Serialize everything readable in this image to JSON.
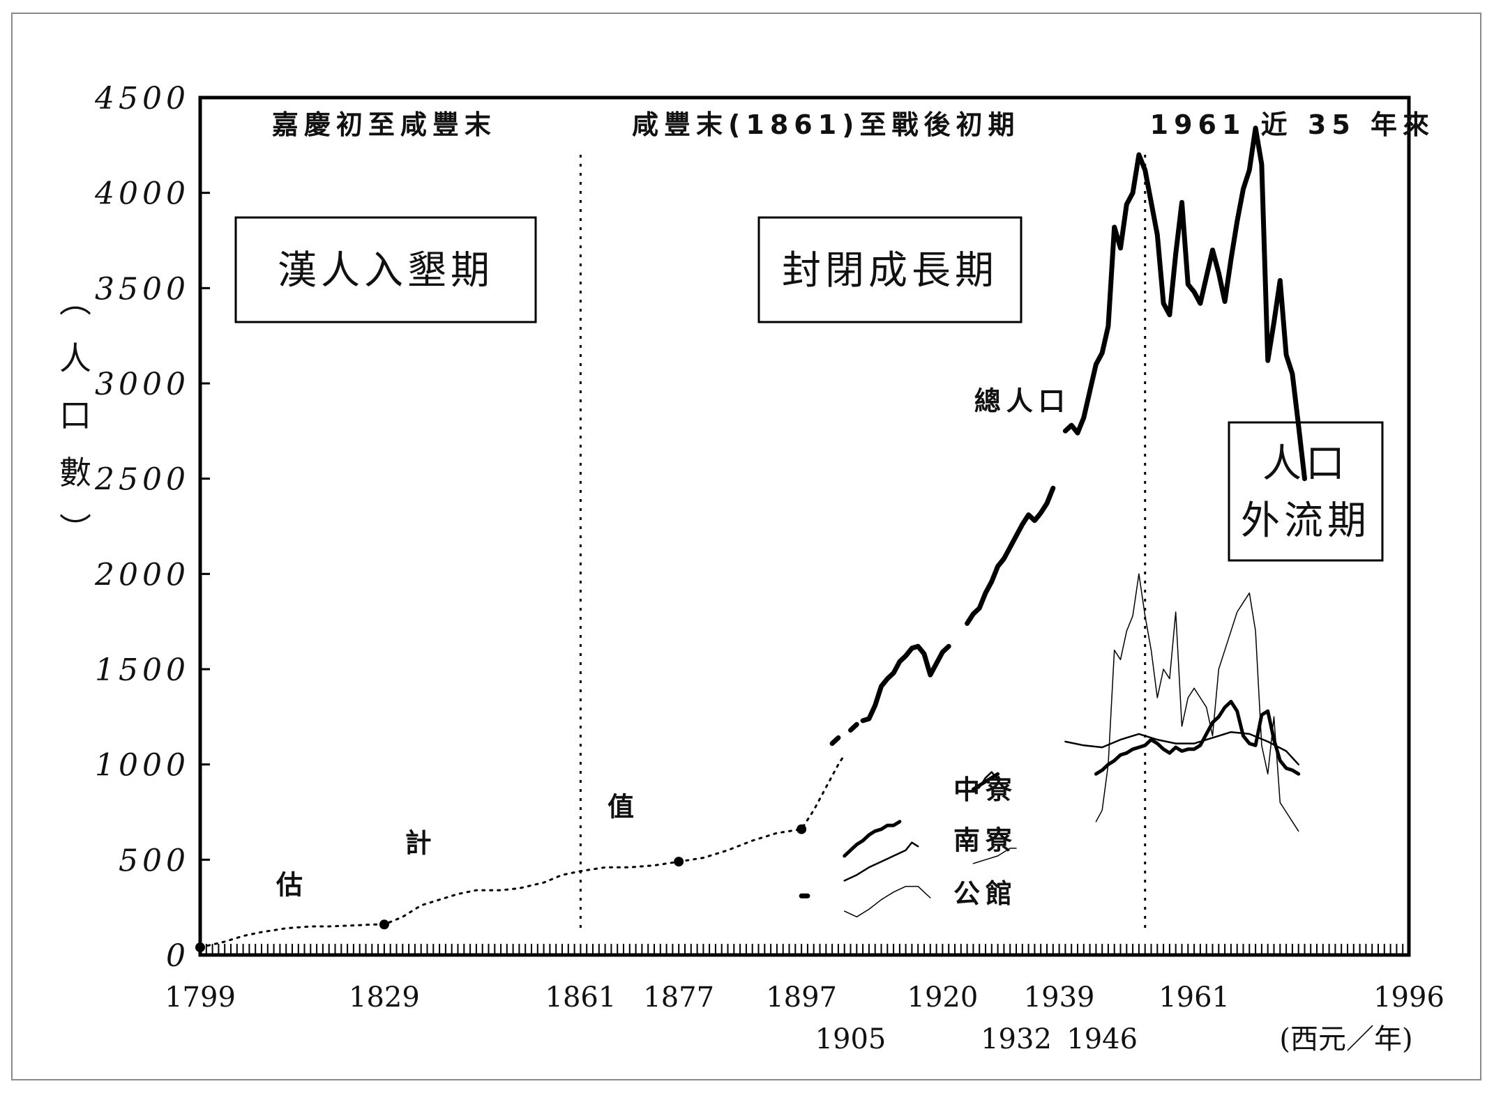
{
  "chart_data": {
    "type": "line",
    "ylabel": "（人口數）",
    "ylabel_chars": [
      "︵",
      "人",
      "口",
      "數",
      "︶"
    ],
    "xlabel": "(西元／年)",
    "xlim": [
      1799,
      1996
    ],
    "ylim": [
      0,
      4500
    ],
    "y_ticks": [
      "0",
      "500",
      "1000",
      "1500",
      "2000",
      "2500",
      "3000",
      "3500",
      "4000",
      "4500"
    ],
    "x_ticks_row1": [
      {
        "label": "1799",
        "x": 1799
      },
      {
        "label": "1829",
        "x": 1829
      },
      {
        "label": "1861",
        "x": 1861
      },
      {
        "label": "1877",
        "x": 1877
      },
      {
        "label": "1897",
        "x": 1897
      },
      {
        "label": "1920",
        "x": 1920
      },
      {
        "label": "1939",
        "x": 1939
      },
      {
        "label": "1961",
        "x": 1961
      },
      {
        "label": "1996",
        "x": 1996
      }
    ],
    "x_ticks_row2": [
      {
        "label": "1905",
        "x": 1905
      },
      {
        "label": "1932",
        "x": 1932
      },
      {
        "label": "1946",
        "x": 1946
      }
    ],
    "period_headers": [
      {
        "text": "嘉慶初至咸豐末",
        "x": 1829
      },
      {
        "text": "咸豐末(1861)至戰後初期",
        "x": 1901
      },
      {
        "text": "1961  近 35 年來",
        "x": 1977
      }
    ],
    "divider_years": [
      1861,
      1953
    ],
    "period_boxes": [
      {
        "lines": [
          "漢人入墾期"
        ]
      },
      {
        "lines": [
          "封閉成長期"
        ]
      },
      {
        "lines": [
          "人口",
          "外流期"
        ]
      }
    ],
    "annotations": [
      {
        "text": "估",
        "x": 1814,
        "y": 320
      },
      {
        "text": "計",
        "x": 1835,
        "y": 540
      },
      {
        "text": "值",
        "x": 1868,
        "y": 730
      },
      {
        "text": "總人口",
        "x": 1933,
        "y": 2860
      }
    ],
    "series_labels": [
      {
        "text": "中寮",
        "x": 1927,
        "y": 820,
        "series": "中寮"
      },
      {
        "text": "南寮",
        "x": 1927,
        "y": 555,
        "series": "南寮"
      },
      {
        "text": "公館",
        "x": 1927,
        "y": 275,
        "series": "公館"
      }
    ],
    "series": [
      {
        "name": "總人口 (估計值)",
        "style": "dotted",
        "points": [
          [
            1799,
            40
          ],
          [
            1803,
            70
          ],
          [
            1806,
            100
          ],
          [
            1809,
            120
          ],
          [
            1813,
            140
          ],
          [
            1817,
            150
          ],
          [
            1820,
            150
          ],
          [
            1824,
            155
          ],
          [
            1827,
            160
          ],
          [
            1829,
            160
          ],
          [
            1832,
            200
          ],
          [
            1835,
            260
          ],
          [
            1838,
            290
          ],
          [
            1841,
            320
          ],
          [
            1844,
            340
          ],
          [
            1848,
            340
          ],
          [
            1851,
            350
          ],
          [
            1855,
            380
          ],
          [
            1858,
            420
          ],
          [
            1861,
            440
          ],
          [
            1865,
            460
          ],
          [
            1869,
            460
          ],
          [
            1873,
            470
          ],
          [
            1877,
            490
          ],
          [
            1881,
            510
          ],
          [
            1885,
            550
          ],
          [
            1889,
            600
          ],
          [
            1893,
            640
          ],
          [
            1897,
            660
          ],
          [
            1899,
            760
          ],
          [
            1901,
            880
          ],
          [
            1903,
            1000
          ],
          [
            1904,
            1050
          ]
        ]
      },
      {
        "name": "總人口",
        "style": "thick",
        "segments": [
          [
            [
              1897,
              310
            ],
            [
              1898,
              310
            ]
          ],
          [
            [
              1902,
              1110
            ],
            [
              1903,
              1140
            ]
          ],
          [
            [
              1905,
              1180
            ],
            [
              1906,
              1210
            ]
          ],
          [
            [
              1907,
              1230
            ],
            [
              1908,
              1240
            ],
            [
              1909,
              1310
            ],
            [
              1910,
              1410
            ],
            [
              1911,
              1450
            ],
            [
              1912,
              1480
            ],
            [
              1913,
              1540
            ],
            [
              1914,
              1570
            ],
            [
              1915,
              1610
            ],
            [
              1916,
              1620
            ],
            [
              1917,
              1580
            ],
            [
              1918,
              1470
            ],
            [
              1919,
              1530
            ],
            [
              1920,
              1590
            ],
            [
              1921,
              1620
            ]
          ],
          [
            [
              1924,
              1740
            ],
            [
              1925,
              1790
            ],
            [
              1926,
              1820
            ],
            [
              1927,
              1900
            ],
            [
              1928,
              1960
            ],
            [
              1929,
              2040
            ],
            [
              1930,
              2080
            ],
            [
              1931,
              2140
            ],
            [
              1932,
              2200
            ],
            [
              1933,
              2260
            ],
            [
              1934,
              2310
            ],
            [
              1935,
              2280
            ],
            [
              1936,
              2320
            ],
            [
              1937,
              2370
            ],
            [
              1938,
              2450
            ]
          ],
          [
            [
              1940,
              2750
            ],
            [
              1941,
              2780
            ],
            [
              1942,
              2740
            ],
            [
              1943,
              2820
            ],
            [
              1944,
              2960
            ],
            [
              1945,
              3100
            ],
            [
              1946,
              3160
            ],
            [
              1947,
              3300
            ],
            [
              1948,
              3820
            ],
            [
              1949,
              3710
            ],
            [
              1950,
              3940
            ],
            [
              1951,
              4000
            ],
            [
              1952,
              4200
            ],
            [
              1953,
              4120
            ],
            [
              1954,
              3950
            ],
            [
              1955,
              3780
            ],
            [
              1956,
              3420
            ],
            [
              1957,
              3360
            ],
            [
              1958,
              3680
            ],
            [
              1959,
              3950
            ],
            [
              1960,
              3520
            ],
            [
              1961,
              3480
            ],
            [
              1962,
              3420
            ],
            [
              1963,
              3560
            ],
            [
              1964,
              3700
            ],
            [
              1965,
              3580
            ],
            [
              1966,
              3430
            ],
            [
              1967,
              3650
            ],
            [
              1968,
              3850
            ],
            [
              1969,
              4020
            ],
            [
              1970,
              4120
            ],
            [
              1971,
              4340
            ],
            [
              1972,
              4150
            ],
            [
              1973,
              3120
            ],
            [
              1974,
              3320
            ],
            [
              1975,
              3540
            ],
            [
              1976,
              3150
            ],
            [
              1977,
              3050
            ],
            [
              1978,
              2780
            ],
            [
              1979,
              2500
            ]
          ]
        ]
      },
      {
        "name": "中寮",
        "style": "medium",
        "segments": [
          [
            [
              1904,
              520
            ],
            [
              1905,
              550
            ],
            [
              1906,
              580
            ],
            [
              1907,
              600
            ],
            [
              1908,
              630
            ],
            [
              1909,
              650
            ],
            [
              1910,
              660
            ],
            [
              1911,
              680
            ],
            [
              1912,
              680
            ],
            [
              1913,
              700
            ]
          ],
          [
            [
              1925,
              870
            ],
            [
              1926,
              890
            ],
            [
              1927,
              910
            ],
            [
              1928,
              930
            ],
            [
              1929,
              950
            ]
          ],
          [
            [
              1945,
              950
            ],
            [
              1946,
              970
            ],
            [
              1947,
              1000
            ],
            [
              1948,
              1020
            ],
            [
              1949,
              1050
            ],
            [
              1950,
              1060
            ],
            [
              1951,
              1080
            ],
            [
              1952,
              1090
            ],
            [
              1953,
              1100
            ],
            [
              1954,
              1130
            ],
            [
              1955,
              1110
            ],
            [
              1956,
              1080
            ],
            [
              1957,
              1060
            ],
            [
              1958,
              1090
            ],
            [
              1959,
              1070
            ],
            [
              1960,
              1080
            ],
            [
              1961,
              1080
            ],
            [
              1962,
              1100
            ],
            [
              1963,
              1160
            ],
            [
              1964,
              1220
            ],
            [
              1965,
              1250
            ],
            [
              1966,
              1300
            ],
            [
              1967,
              1330
            ],
            [
              1968,
              1280
            ],
            [
              1969,
              1150
            ],
            [
              1970,
              1110
            ],
            [
              1971,
              1100
            ],
            [
              1972,
              1260
            ],
            [
              1973,
              1280
            ],
            [
              1974,
              1130
            ],
            [
              1975,
              1020
            ],
            [
              1976,
              980
            ],
            [
              1977,
              970
            ],
            [
              1978,
              950
            ]
          ]
        ]
      },
      {
        "name": "南寮",
        "style": "thin",
        "segments": [
          [
            [
              1904,
              390
            ],
            [
              1906,
              420
            ],
            [
              1908,
              460
            ],
            [
              1910,
              490
            ],
            [
              1912,
              520
            ],
            [
              1914,
              550
            ],
            [
              1915,
              590
            ],
            [
              1916,
              570
            ]
          ],
          [
            [
              1925,
              860
            ],
            [
              1926,
              880
            ],
            [
              1927,
              930
            ],
            [
              1928,
              960
            ],
            [
              1929,
              920
            ]
          ],
          [
            [
              1940,
              1120
            ],
            [
              1943,
              1100
            ],
            [
              1946,
              1090
            ],
            [
              1949,
              1130
            ],
            [
              1952,
              1160
            ],
            [
              1955,
              1130
            ],
            [
              1958,
              1110
            ],
            [
              1961,
              1110
            ],
            [
              1964,
              1140
            ],
            [
              1967,
              1170
            ],
            [
              1970,
              1160
            ],
            [
              1973,
              1120
            ],
            [
              1976,
              1070
            ],
            [
              1978,
              1000
            ]
          ]
        ]
      },
      {
        "name": "公館",
        "style": "hairline",
        "segments": [
          [
            [
              1904,
              230
            ],
            [
              1906,
              200
            ],
            [
              1908,
              240
            ],
            [
              1910,
              290
            ],
            [
              1912,
              330
            ],
            [
              1914,
              360
            ],
            [
              1916,
              360
            ],
            [
              1918,
              300
            ]
          ],
          [
            [
              1925,
              480
            ],
            [
              1927,
              500
            ],
            [
              1929,
              520
            ],
            [
              1931,
              560
            ],
            [
              1932,
              560
            ]
          ],
          [
            [
              1945,
              700
            ],
            [
              1946,
              760
            ],
            [
              1947,
              1000
            ],
            [
              1948,
              1600
            ],
            [
              1949,
              1550
            ],
            [
              1950,
              1700
            ],
            [
              1951,
              1780
            ],
            [
              1952,
              2000
            ],
            [
              1953,
              1780
            ],
            [
              1954,
              1600
            ],
            [
              1955,
              1350
            ],
            [
              1956,
              1500
            ],
            [
              1957,
              1450
            ],
            [
              1958,
              1800
            ],
            [
              1959,
              1200
            ],
            [
              1960,
              1350
            ],
            [
              1961,
              1400
            ],
            [
              1962,
              1350
            ],
            [
              1963,
              1300
            ],
            [
              1964,
              1150
            ],
            [
              1965,
              1500
            ],
            [
              1966,
              1600
            ],
            [
              1967,
              1700
            ],
            [
              1968,
              1800
            ],
            [
              1969,
              1850
            ],
            [
              1970,
              1900
            ],
            [
              1971,
              1700
            ],
            [
              1972,
              1100
            ],
            [
              1973,
              950
            ],
            [
              1974,
              1250
            ],
            [
              1975,
              800
            ],
            [
              1976,
              750
            ],
            [
              1977,
              700
            ],
            [
              1978,
              650
            ]
          ]
        ]
      }
    ]
  }
}
